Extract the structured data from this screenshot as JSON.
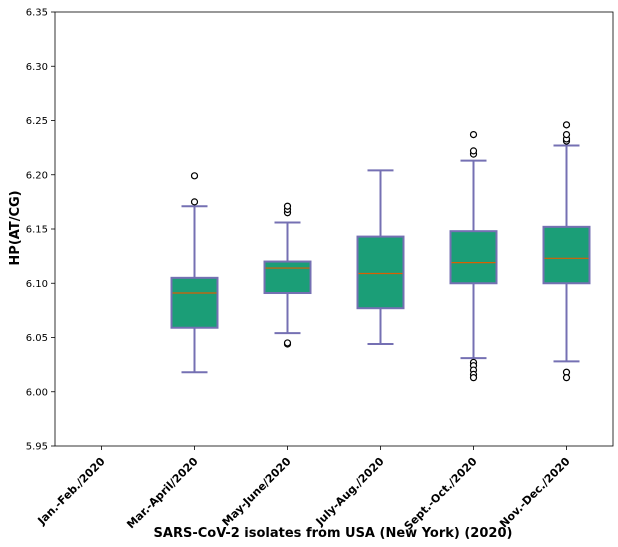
{
  "chart_data": {
    "type": "box",
    "title": "",
    "xlabel": "SARS-CoV-2 isolates from USA (New York) (2020)",
    "ylabel": "HP(AT/CG)",
    "ylim": [
      5.95,
      6.35
    ],
    "yticks": [
      "5.95",
      "6.00",
      "6.05",
      "6.10",
      "6.15",
      "6.20",
      "6.25",
      "6.30",
      "6.35"
    ],
    "ytick_values": [
      5.95,
      6.0,
      6.05,
      6.1,
      6.15,
      6.2,
      6.25,
      6.3,
      6.35
    ],
    "categories": [
      "Jan.-Feb./2020",
      "Mar.-April/2020",
      "May-June/2020",
      "July-Aug./2020",
      "Sept.-Oct./2020",
      "Nov.-Dec./2020"
    ],
    "boxes": [
      null,
      {
        "whisker_low": 6.018,
        "q1": 6.059,
        "median": 6.091,
        "q3": 6.105,
        "whisker_high": 6.171,
        "outliers": [
          6.175,
          6.199
        ]
      },
      {
        "whisker_low": 6.054,
        "q1": 6.091,
        "median": 6.114,
        "q3": 6.12,
        "whisker_high": 6.156,
        "outliers": [
          6.165,
          6.168,
          6.171,
          6.044,
          6.045
        ]
      },
      {
        "whisker_low": 6.044,
        "q1": 6.077,
        "median": 6.109,
        "q3": 6.143,
        "whisker_high": 6.204,
        "outliers": []
      },
      {
        "whisker_low": 6.031,
        "q1": 6.1,
        "median": 6.119,
        "q3": 6.148,
        "whisker_high": 6.213,
        "outliers": [
          6.219,
          6.222,
          6.237,
          6.027,
          6.024,
          6.02,
          6.016,
          6.013
        ]
      },
      {
        "whisker_low": 6.028,
        "q1": 6.1,
        "median": 6.123,
        "q3": 6.152,
        "whisker_high": 6.227,
        "outliers": [
          6.231,
          6.233,
          6.237,
          6.246,
          6.018,
          6.013
        ]
      }
    ],
    "colors": {
      "box_fill": "#1b9e77",
      "box_edge": "#7570b3",
      "median": "#d95f02",
      "outlier_edge": "#000000"
    }
  }
}
